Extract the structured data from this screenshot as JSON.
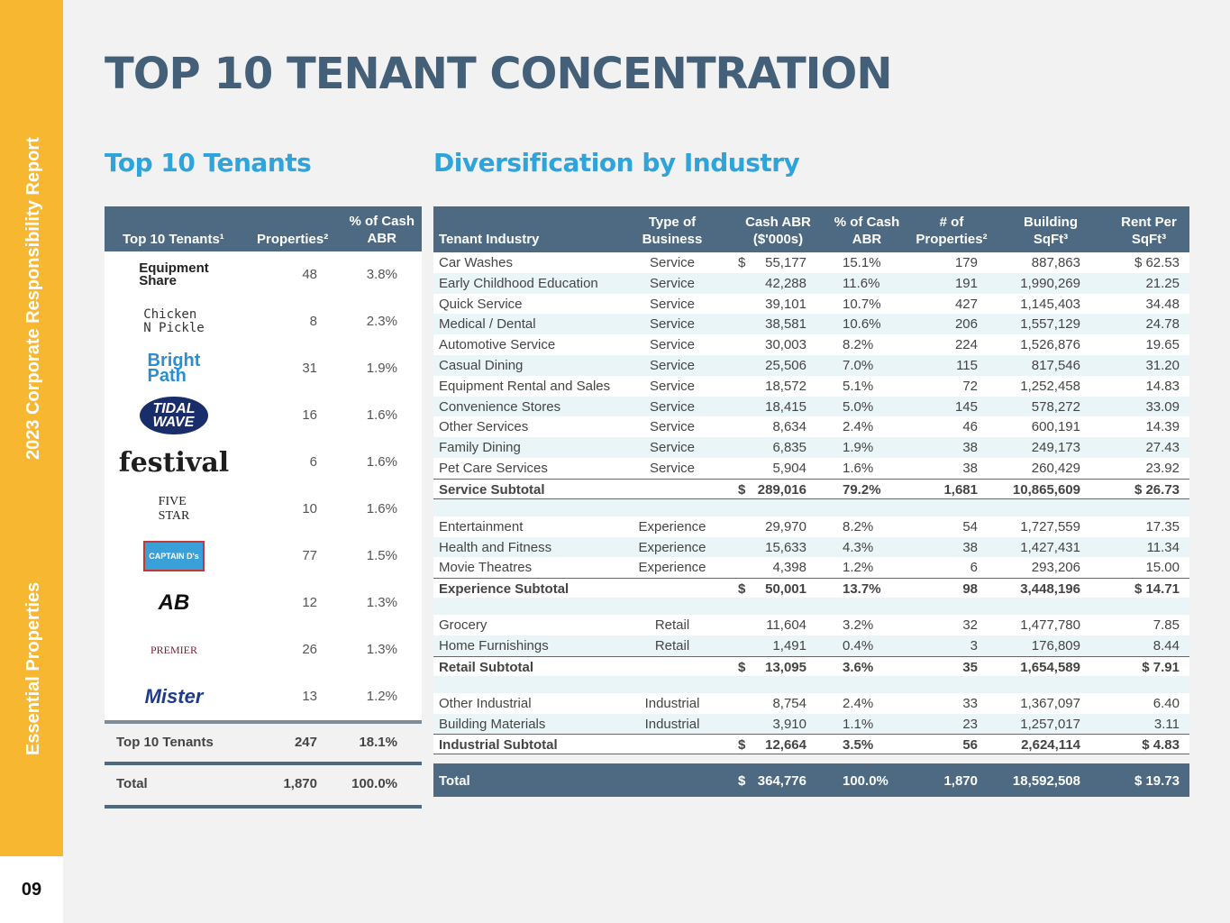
{
  "sidebar": {
    "line1": "Essential Properties",
    "line2": "2023 Corporate Responsibility Report",
    "page_number": "09"
  },
  "title": "TOP 10 TENANT CONCENTRATION",
  "left_title": "Top 10 Tenants",
  "right_title": "Diversification by Industry",
  "top_tenants": {
    "headers": {
      "tenants": "Top 10 Tenants¹",
      "properties": "Properties²",
      "pct_line1": "% of Cash",
      "pct_line2": "ABR"
    },
    "rows": [
      {
        "logo": "Equipment Share",
        "logo_l1": "Equipment",
        "logo_l2": "Share",
        "properties": "48",
        "pct": "3.8%"
      },
      {
        "logo": "Chicken N Pickle",
        "logo_l1": "Chicken",
        "logo_l2": "N Pickle",
        "properties": "8",
        "pct": "2.3%"
      },
      {
        "logo": "Bright Path",
        "logo_l1": "Bright",
        "logo_l2": "Path",
        "properties": "31",
        "pct": "1.9%"
      },
      {
        "logo": "Tidal Wave Auto Spa",
        "logo_l1": "TIDAL",
        "logo_l2": "WAVE",
        "properties": "16",
        "pct": "1.6%"
      },
      {
        "logo": "festival",
        "logo_l1": "festival",
        "logo_l2": "",
        "properties": "6",
        "pct": "1.6%"
      },
      {
        "logo": "Five Star",
        "logo_l1": "FIVE",
        "logo_l2": "STAR",
        "properties": "10",
        "pct": "1.6%"
      },
      {
        "logo": "Captain D's",
        "logo_l1": "CAPTAIN D's",
        "logo_l2": "",
        "properties": "77",
        "pct": "1.5%"
      },
      {
        "logo": "AB",
        "logo_l1": "AB",
        "logo_l2": "",
        "properties": "12",
        "pct": "1.3%"
      },
      {
        "logo": "Premier",
        "logo_l1": "PREMIER",
        "logo_l2": "",
        "properties": "26",
        "pct": "1.3%"
      },
      {
        "logo": "Mister",
        "logo_l1": "Mister",
        "logo_l2": "",
        "properties": "13",
        "pct": "1.2%"
      }
    ],
    "subtotal": {
      "label": "Top 10 Tenants",
      "properties": "247",
      "pct": "18.1%"
    },
    "total": {
      "label": "Total",
      "properties": "1,870",
      "pct": "100.0%"
    }
  },
  "industry": {
    "headers": {
      "industry": "Tenant Industry",
      "type_l1": "Type of",
      "type_l2": "Business",
      "abr_l1": "Cash ABR",
      "abr_l2": "($'000s)",
      "pct_l1": "% of Cash",
      "pct_l2": "ABR",
      "props_l1": "# of",
      "props_l2": "Properties²",
      "sqft_l1": "Building",
      "sqft_l2": "SqFt³",
      "rent_l1": "Rent Per",
      "rent_l2": "SqFt³"
    },
    "groups": [
      {
        "rows": [
          {
            "industry": "Car Washes",
            "type": "Service",
            "dollar": "$",
            "abr": "55,177",
            "pct": "15.1%",
            "props": "179",
            "sqft": "887,863",
            "rent": "$ 62.53"
          },
          {
            "industry": "Early Childhood Education",
            "type": "Service",
            "dollar": "",
            "abr": "42,288",
            "pct": "11.6%",
            "props": "191",
            "sqft": "1,990,269",
            "rent": "21.25"
          },
          {
            "industry": "Quick Service",
            "type": "Service",
            "dollar": "",
            "abr": "39,101",
            "pct": "10.7%",
            "props": "427",
            "sqft": "1,145,403",
            "rent": "34.48"
          },
          {
            "industry": "Medical / Dental",
            "type": "Service",
            "dollar": "",
            "abr": "38,581",
            "pct": "10.6%",
            "props": "206",
            "sqft": "1,557,129",
            "rent": "24.78"
          },
          {
            "industry": "Automotive Service",
            "type": "Service",
            "dollar": "",
            "abr": "30,003",
            "pct": "8.2%",
            "props": "224",
            "sqft": "1,526,876",
            "rent": "19.65"
          },
          {
            "industry": "Casual Dining",
            "type": "Service",
            "dollar": "",
            "abr": "25,506",
            "pct": "7.0%",
            "props": "115",
            "sqft": "817,546",
            "rent": "31.20"
          },
          {
            "industry": "Equipment Rental and Sales",
            "type": "Service",
            "dollar": "",
            "abr": "18,572",
            "pct": "5.1%",
            "props": "72",
            "sqft": "1,252,458",
            "rent": "14.83"
          },
          {
            "industry": "Convenience Stores",
            "type": "Service",
            "dollar": "",
            "abr": "18,415",
            "pct": "5.0%",
            "props": "145",
            "sqft": "578,272",
            "rent": "33.09"
          },
          {
            "industry": "Other Services",
            "type": "Service",
            "dollar": "",
            "abr": "8,634",
            "pct": "2.4%",
            "props": "46",
            "sqft": "600,191",
            "rent": "14.39"
          },
          {
            "industry": "Family Dining",
            "type": "Service",
            "dollar": "",
            "abr": "6,835",
            "pct": "1.9%",
            "props": "38",
            "sqft": "249,173",
            "rent": "27.43"
          },
          {
            "industry": "Pet Care Services",
            "type": "Service",
            "dollar": "",
            "abr": "5,904",
            "pct": "1.6%",
            "props": "38",
            "sqft": "260,429",
            "rent": "23.92"
          }
        ],
        "subtotal": {
          "industry": "Service Subtotal",
          "dollar": "$",
          "abr": "289,016",
          "pct": "79.2%",
          "props": "1,681",
          "sqft": "10,865,609",
          "rent": "$ 26.73"
        }
      },
      {
        "rows": [
          {
            "industry": "Entertainment",
            "type": "Experience",
            "dollar": "",
            "abr": "29,970",
            "pct": "8.2%",
            "props": "54",
            "sqft": "1,727,559",
            "rent": "17.35"
          },
          {
            "industry": "Health and Fitness",
            "type": "Experience",
            "dollar": "",
            "abr": "15,633",
            "pct": "4.3%",
            "props": "38",
            "sqft": "1,427,431",
            "rent": "11.34"
          },
          {
            "industry": "Movie Theatres",
            "type": "Experience",
            "dollar": "",
            "abr": "4,398",
            "pct": "1.2%",
            "props": "6",
            "sqft": "293,206",
            "rent": "15.00"
          }
        ],
        "subtotal": {
          "industry": "Experience Subtotal",
          "dollar": "$",
          "abr": "50,001",
          "pct": "13.7%",
          "props": "98",
          "sqft": "3,448,196",
          "rent": "$ 14.71"
        }
      },
      {
        "rows": [
          {
            "industry": "Grocery",
            "type": "Retail",
            "dollar": "",
            "abr": "11,604",
            "pct": "3.2%",
            "props": "32",
            "sqft": "1,477,780",
            "rent": "7.85"
          },
          {
            "industry": "Home Furnishings",
            "type": "Retail",
            "dollar": "",
            "abr": "1,491",
            "pct": "0.4%",
            "props": "3",
            "sqft": "176,809",
            "rent": "8.44"
          }
        ],
        "subtotal": {
          "industry": "Retail Subtotal",
          "dollar": "$",
          "abr": "13,095",
          "pct": "3.6%",
          "props": "35",
          "sqft": "1,654,589",
          "rent": "$ 7.91"
        }
      },
      {
        "rows": [
          {
            "industry": "Other Industrial",
            "type": "Industrial",
            "dollar": "",
            "abr": "8,754",
            "pct": "2.4%",
            "props": "33",
            "sqft": "1,367,097",
            "rent": "6.40"
          },
          {
            "industry": "Building Materials",
            "type": "Industrial",
            "dollar": "",
            "abr": "3,910",
            "pct": "1.1%",
            "props": "23",
            "sqft": "1,257,017",
            "rent": "3.11"
          }
        ],
        "subtotal": {
          "industry": "Industrial Subtotal",
          "dollar": "$",
          "abr": "12,664",
          "pct": "3.5%",
          "props": "56",
          "sqft": "2,624,114",
          "rent": "$ 4.83"
        }
      }
    ],
    "total": {
      "industry": "Total",
      "dollar": "$",
      "abr": "364,776",
      "pct": "100.0%",
      "props": "1,870",
      "sqft": "18,592,508",
      "rent": "$ 19.73"
    }
  },
  "colors": {
    "accent": "#f8b731",
    "header": "#4d6a82",
    "title": "#445f78",
    "subtitle": "#2fa4db"
  }
}
